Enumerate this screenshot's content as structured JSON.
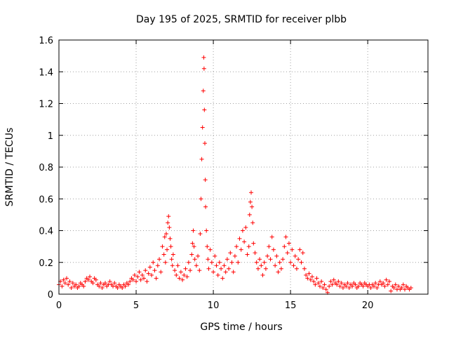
{
  "chart_data": {
    "type": "scatter",
    "title": "Day 195 of 2025, SRMTID for receiver plbb",
    "xlabel": "GPS time / hours",
    "ylabel": "SRMTID / TECUs",
    "xlim": [
      0,
      23.9
    ],
    "ylim": [
      0,
      1.6
    ],
    "x_ticks": [
      0,
      5,
      10,
      15,
      20
    ],
    "x_tick_labels": [
      "0",
      "5",
      "10",
      "15",
      "20"
    ],
    "y_ticks": [
      0,
      0.2,
      0.4,
      0.6,
      0.8,
      1.0,
      1.2,
      1.4,
      1.6
    ],
    "y_tick_labels": [
      "0",
      "0.2",
      "0.4",
      "0.6",
      "0.8",
      "1",
      "1.2",
      "1.4",
      "1.6"
    ],
    "grid": true,
    "marker": "+",
    "marker_color": "#ff0000",
    "series": [
      {
        "name": "SRMTID",
        "points": [
          [
            0.0,
            0.06
          ],
          [
            0.1,
            0.08
          ],
          [
            0.2,
            0.05
          ],
          [
            0.3,
            0.09
          ],
          [
            0.4,
            0.07
          ],
          [
            0.5,
            0.1
          ],
          [
            0.6,
            0.06
          ],
          [
            0.7,
            0.08
          ],
          [
            0.8,
            0.04
          ],
          [
            0.9,
            0.07
          ],
          [
            1.0,
            0.05
          ],
          [
            1.1,
            0.06
          ],
          [
            1.2,
            0.04
          ],
          [
            1.3,
            0.05
          ],
          [
            1.4,
            0.07
          ],
          [
            1.5,
            0.06
          ],
          [
            1.6,
            0.05
          ],
          [
            1.7,
            0.08
          ],
          [
            1.8,
            0.1
          ],
          [
            1.9,
            0.09
          ],
          [
            2.0,
            0.11
          ],
          [
            2.1,
            0.08
          ],
          [
            2.2,
            0.07
          ],
          [
            2.3,
            0.1
          ],
          [
            2.4,
            0.09
          ],
          [
            2.5,
            0.06
          ],
          [
            2.6,
            0.05
          ],
          [
            2.7,
            0.07
          ],
          [
            2.8,
            0.04
          ],
          [
            2.9,
            0.06
          ],
          [
            3.0,
            0.07
          ],
          [
            3.1,
            0.05
          ],
          [
            3.2,
            0.06
          ],
          [
            3.3,
            0.08
          ],
          [
            3.4,
            0.06
          ],
          [
            3.5,
            0.05
          ],
          [
            3.6,
            0.07
          ],
          [
            3.7,
            0.05
          ],
          [
            3.8,
            0.04
          ],
          [
            3.9,
            0.06
          ],
          [
            4.0,
            0.05
          ],
          [
            4.1,
            0.04
          ],
          [
            4.2,
            0.06
          ],
          [
            4.3,
            0.05
          ],
          [
            4.4,
            0.07
          ],
          [
            4.5,
            0.06
          ],
          [
            4.6,
            0.08
          ],
          [
            4.7,
            0.1
          ],
          [
            4.8,
            0.09
          ],
          [
            4.9,
            0.12
          ],
          [
            5.0,
            0.08
          ],
          [
            5.1,
            0.11
          ],
          [
            5.2,
            0.14
          ],
          [
            5.3,
            0.09
          ],
          [
            5.4,
            0.12
          ],
          [
            5.5,
            0.1
          ],
          [
            5.6,
            0.15
          ],
          [
            5.7,
            0.08
          ],
          [
            5.8,
            0.13
          ],
          [
            5.9,
            0.17
          ],
          [
            6.0,
            0.12
          ],
          [
            6.1,
            0.2
          ],
          [
            6.2,
            0.15
          ],
          [
            6.3,
            0.1
          ],
          [
            6.4,
            0.18
          ],
          [
            6.5,
            0.22
          ],
          [
            6.6,
            0.14
          ],
          [
            6.7,
            0.3
          ],
          [
            6.8,
            0.25
          ],
          [
            6.85,
            0.36
          ],
          [
            6.9,
            0.2
          ],
          [
            6.95,
            0.38
          ],
          [
            7.0,
            0.28
          ],
          [
            7.05,
            0.45
          ],
          [
            7.1,
            0.49
          ],
          [
            7.15,
            0.42
          ],
          [
            7.2,
            0.35
          ],
          [
            7.25,
            0.3
          ],
          [
            7.3,
            0.22
          ],
          [
            7.35,
            0.18
          ],
          [
            7.4,
            0.25
          ],
          [
            7.5,
            0.15
          ],
          [
            7.6,
            0.12
          ],
          [
            7.7,
            0.18
          ],
          [
            7.8,
            0.1
          ],
          [
            7.9,
            0.14
          ],
          [
            8.0,
            0.09
          ],
          [
            8.1,
            0.12
          ],
          [
            8.2,
            0.16
          ],
          [
            8.3,
            0.11
          ],
          [
            8.4,
            0.2
          ],
          [
            8.5,
            0.15
          ],
          [
            8.6,
            0.25
          ],
          [
            8.65,
            0.32
          ],
          [
            8.7,
            0.4
          ],
          [
            8.75,
            0.3
          ],
          [
            8.8,
            0.22
          ],
          [
            8.9,
            0.18
          ],
          [
            9.0,
            0.24
          ],
          [
            9.1,
            0.15
          ],
          [
            9.15,
            0.38
          ],
          [
            9.2,
            0.6
          ],
          [
            9.25,
            0.85
          ],
          [
            9.3,
            1.05
          ],
          [
            9.35,
            1.28
          ],
          [
            9.38,
            1.49
          ],
          [
            9.4,
            1.42
          ],
          [
            9.42,
            1.16
          ],
          [
            9.45,
            0.95
          ],
          [
            9.48,
            0.72
          ],
          [
            9.5,
            0.55
          ],
          [
            9.55,
            0.4
          ],
          [
            9.6,
            0.3
          ],
          [
            9.65,
            0.22
          ],
          [
            9.7,
            0.16
          ],
          [
            9.8,
            0.28
          ],
          [
            9.9,
            0.2
          ],
          [
            10.0,
            0.14
          ],
          [
            10.1,
            0.24
          ],
          [
            10.2,
            0.18
          ],
          [
            10.3,
            0.12
          ],
          [
            10.4,
            0.2
          ],
          [
            10.5,
            0.16
          ],
          [
            10.6,
            0.1
          ],
          [
            10.7,
            0.18
          ],
          [
            10.8,
            0.14
          ],
          [
            10.9,
            0.22
          ],
          [
            11.0,
            0.16
          ],
          [
            11.1,
            0.26
          ],
          [
            11.2,
            0.2
          ],
          [
            11.3,
            0.14
          ],
          [
            11.4,
            0.24
          ],
          [
            11.5,
            0.3
          ],
          [
            11.6,
            0.2
          ],
          [
            11.7,
            0.35
          ],
          [
            11.8,
            0.28
          ],
          [
            11.9,
            0.4
          ],
          [
            12.0,
            0.33
          ],
          [
            12.1,
            0.42
          ],
          [
            12.2,
            0.25
          ],
          [
            12.3,
            0.3
          ],
          [
            12.35,
            0.5
          ],
          [
            12.4,
            0.58
          ],
          [
            12.45,
            0.64
          ],
          [
            12.5,
            0.55
          ],
          [
            12.55,
            0.45
          ],
          [
            12.6,
            0.32
          ],
          [
            12.7,
            0.26
          ],
          [
            12.8,
            0.2
          ],
          [
            12.9,
            0.16
          ],
          [
            13.0,
            0.22
          ],
          [
            13.1,
            0.18
          ],
          [
            13.2,
            0.12
          ],
          [
            13.3,
            0.2
          ],
          [
            13.4,
            0.16
          ],
          [
            13.5,
            0.24
          ],
          [
            13.6,
            0.3
          ],
          [
            13.7,
            0.22
          ],
          [
            13.8,
            0.36
          ],
          [
            13.9,
            0.28
          ],
          [
            14.0,
            0.18
          ],
          [
            14.1,
            0.24
          ],
          [
            14.2,
            0.14
          ],
          [
            14.3,
            0.2
          ],
          [
            14.4,
            0.16
          ],
          [
            14.5,
            0.22
          ],
          [
            14.6,
            0.3
          ],
          [
            14.7,
            0.36
          ],
          [
            14.8,
            0.26
          ],
          [
            14.9,
            0.32
          ],
          [
            15.0,
            0.2
          ],
          [
            15.1,
            0.28
          ],
          [
            15.2,
            0.18
          ],
          [
            15.3,
            0.24
          ],
          [
            15.4,
            0.16
          ],
          [
            15.5,
            0.22
          ],
          [
            15.6,
            0.28
          ],
          [
            15.7,
            0.2
          ],
          [
            15.8,
            0.26
          ],
          [
            15.9,
            0.16
          ],
          [
            16.0,
            0.12
          ],
          [
            16.1,
            0.1
          ],
          [
            16.2,
            0.13
          ],
          [
            16.3,
            0.09
          ],
          [
            16.4,
            0.11
          ],
          [
            16.5,
            0.08
          ],
          [
            16.6,
            0.06
          ],
          [
            16.7,
            0.1
          ],
          [
            16.8,
            0.07
          ],
          [
            16.9,
            0.05
          ],
          [
            17.0,
            0.08
          ],
          [
            17.1,
            0.04
          ],
          [
            17.2,
            0.06
          ],
          [
            17.3,
            0.03
          ],
          [
            17.4,
            0.01
          ],
          [
            17.5,
            0.05
          ],
          [
            17.6,
            0.08
          ],
          [
            17.7,
            0.06
          ],
          [
            17.8,
            0.09
          ],
          [
            17.9,
            0.07
          ],
          [
            18.0,
            0.06
          ],
          [
            18.1,
            0.08
          ],
          [
            18.2,
            0.05
          ],
          [
            18.3,
            0.07
          ],
          [
            18.4,
            0.04
          ],
          [
            18.5,
            0.06
          ],
          [
            18.6,
            0.05
          ],
          [
            18.7,
            0.07
          ],
          [
            18.8,
            0.04
          ],
          [
            18.9,
            0.06
          ],
          [
            19.0,
            0.05
          ],
          [
            19.1,
            0.07
          ],
          [
            19.2,
            0.06
          ],
          [
            19.3,
            0.04
          ],
          [
            19.4,
            0.05
          ],
          [
            19.5,
            0.07
          ],
          [
            19.6,
            0.06
          ],
          [
            19.7,
            0.05
          ],
          [
            19.8,
            0.07
          ],
          [
            19.9,
            0.06
          ],
          [
            20.0,
            0.05
          ],
          [
            20.1,
            0.06
          ],
          [
            20.2,
            0.04
          ],
          [
            20.3,
            0.06
          ],
          [
            20.4,
            0.05
          ],
          [
            20.5,
            0.07
          ],
          [
            20.6,
            0.04
          ],
          [
            20.7,
            0.06
          ],
          [
            20.8,
            0.08
          ],
          [
            20.9,
            0.06
          ],
          [
            21.0,
            0.07
          ],
          [
            21.1,
            0.05
          ],
          [
            21.2,
            0.09
          ],
          [
            21.3,
            0.06
          ],
          [
            21.4,
            0.08
          ],
          [
            21.5,
            0.02
          ],
          [
            21.6,
            0.05
          ],
          [
            21.7,
            0.04
          ],
          [
            21.8,
            0.06
          ],
          [
            21.9,
            0.03
          ],
          [
            22.0,
            0.05
          ],
          [
            22.1,
            0.03
          ],
          [
            22.2,
            0.04
          ],
          [
            22.3,
            0.06
          ],
          [
            22.4,
            0.03
          ],
          [
            22.5,
            0.05
          ],
          [
            22.6,
            0.04
          ],
          [
            22.7,
            0.03
          ],
          [
            22.8,
            0.04
          ]
        ]
      }
    ]
  }
}
